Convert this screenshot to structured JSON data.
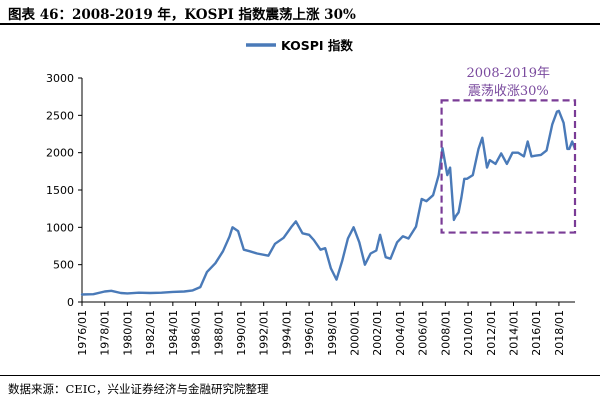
{
  "figure": {
    "title": "图表 46：2008-2019 年，KOSPI 指数震荡上涨 30%",
    "source": "数据来源：CEIC，兴业证券经济与金融研究院整理"
  },
  "chart_data": {
    "type": "line",
    "title": "",
    "xlabel": "",
    "ylabel": "",
    "ylim": [
      0,
      3000
    ],
    "xlim": [
      "1976/01",
      "2019/06"
    ],
    "yticks": [
      "0",
      "500",
      "1000",
      "1500",
      "2000",
      "2500",
      "3000"
    ],
    "xticks": [
      "1976/01",
      "1978/01",
      "1980/01",
      "1982/01",
      "1984/01",
      "1986/01",
      "1988/01",
      "1990/01",
      "1992/01",
      "1994/01",
      "1996/01",
      "1998/01",
      "2000/01",
      "2002/01",
      "2004/01",
      "2006/01",
      "2008/01",
      "2010/01",
      "2012/01",
      "2014/01",
      "2016/01",
      "2018/01"
    ],
    "grid": false,
    "legend_position": "top-center",
    "series": [
      {
        "name": "KOSPI 指数",
        "color": "#4a7ab8",
        "x": [
          "1976/01",
          "1977/01",
          "1978/01",
          "1978/08",
          "1979/06",
          "1980/01",
          "1981/01",
          "1982/01",
          "1983/01",
          "1984/01",
          "1985/01",
          "1985/10",
          "1986/06",
          "1987/01",
          "1987/10",
          "1988/06",
          "1989/01",
          "1989/04",
          "1989/10",
          "1990/04",
          "1990/10",
          "1991/06",
          "1992/06",
          "1993/01",
          "1993/10",
          "1994/06",
          "1994/11",
          "1995/06",
          "1996/01",
          "1996/06",
          "1997/01",
          "1997/06",
          "1997/12",
          "1998/06",
          "1998/12",
          "1999/06",
          "1999/12",
          "2000/06",
          "2000/12",
          "2001/06",
          "2001/12",
          "2002/04",
          "2002/10",
          "2003/03",
          "2003/10",
          "2004/04",
          "2004/10",
          "2005/06",
          "2005/12",
          "2006/05",
          "2006/12",
          "2007/06",
          "2007/10",
          "2008/03",
          "2008/06",
          "2008/10",
          "2008/12",
          "2009/03",
          "2009/06",
          "2009/09",
          "2009/12",
          "2010/06",
          "2010/12",
          "2011/04",
          "2011/09",
          "2011/12",
          "2012/06",
          "2012/12",
          "2013/06",
          "2013/12",
          "2014/06",
          "2014/12",
          "2015/04",
          "2015/08",
          "2015/12",
          "2016/06",
          "2016/12",
          "2017/06",
          "2017/11",
          "2018/01",
          "2018/06",
          "2018/10",
          "2018/12",
          "2019/03",
          "2019/06"
        ],
        "values": [
          100,
          105,
          140,
          150,
          120,
          115,
          125,
          120,
          125,
          135,
          140,
          155,
          200,
          400,
          520,
          680,
          880,
          1000,
          950,
          700,
          680,
          650,
          620,
          780,
          860,
          1000,
          1080,
          920,
          900,
          830,
          700,
          720,
          450,
          300,
          550,
          850,
          1000,
          800,
          500,
          650,
          690,
          900,
          600,
          580,
          800,
          880,
          850,
          1010,
          1380,
          1350,
          1430,
          1700,
          2060,
          1700,
          1800,
          1100,
          1150,
          1200,
          1400,
          1650,
          1650,
          1700,
          2050,
          2200,
          1800,
          1900,
          1850,
          1990,
          1850,
          2000,
          2000,
          1950,
          2150,
          1950,
          1960,
          1970,
          2030,
          2380,
          2550,
          2560,
          2400,
          2050,
          2050,
          2150,
          2050
        ]
      }
    ],
    "annotation": {
      "label_line1": "2008-2019年",
      "label_line2": "震荡收涨30%",
      "x_start": "2007/09",
      "x_end": "2019/06",
      "y_low": 930,
      "y_high": 2700,
      "color": "#7a3c96"
    }
  }
}
